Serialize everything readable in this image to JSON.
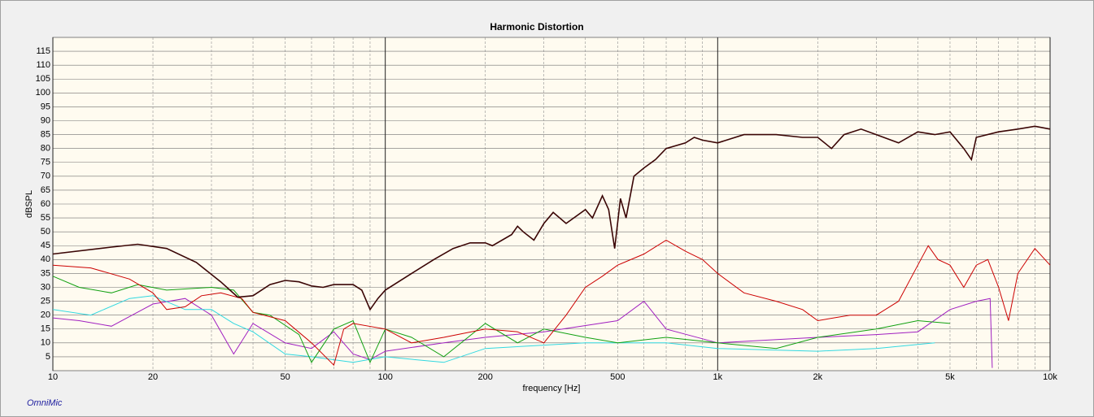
{
  "chart_data": {
    "type": "line",
    "title": "Harmonic Distortion",
    "x_label": "frequency [Hz]",
    "y_label": "dBSPL",
    "footer": "OmniMic",
    "log_x": true,
    "grid": true,
    "xlim": [
      10,
      10000
    ],
    "ylim": [
      0,
      120
    ],
    "xticks": [
      10,
      20,
      50,
      100,
      200,
      500,
      {
        "value": 1000,
        "label": "1k"
      },
      {
        "value": 2000,
        "label": "2k"
      },
      {
        "value": 5000,
        "label": "5k"
      },
      {
        "value": 10000,
        "label": "10k"
      }
    ],
    "xgrid_minor": [
      30,
      40,
      60,
      70,
      80,
      90,
      300,
      400,
      600,
      700,
      800,
      900,
      3000,
      4000,
      6000,
      7000,
      8000,
      9000
    ],
    "yticks": [
      5,
      10,
      15,
      20,
      25,
      30,
      35,
      40,
      45,
      50,
      55,
      60,
      65,
      70,
      75,
      80,
      85,
      90,
      95,
      100,
      105,
      110,
      115
    ],
    "series": [
      {
        "color": "#3a0505",
        "x": [
          10,
          15,
          18,
          22,
          27,
          32,
          36,
          40,
          45,
          50,
          55,
          60,
          65,
          70,
          80,
          85,
          90,
          95,
          100,
          120,
          140,
          160,
          180,
          200,
          210,
          240,
          250,
          260,
          280,
          300,
          320,
          350,
          400,
          420,
          450,
          470,
          490,
          510,
          530,
          560,
          600,
          650,
          700,
          800,
          850,
          900,
          1000,
          1200,
          1500,
          1800,
          2000,
          2200,
          2400,
          2700,
          3000,
          3500,
          4000,
          4500,
          5000,
          5500,
          5800,
          6000,
          7000,
          8000,
          9000,
          10000
        ],
        "values": [
          42,
          44.5,
          45.5,
          44,
          39,
          32,
          26.5,
          27,
          31,
          32.5,
          32,
          30.5,
          30,
          31,
          31,
          29,
          22,
          26,
          29,
          35,
          40,
          44,
          46,
          46,
          45,
          49,
          52,
          50,
          47,
          53,
          57,
          53,
          58,
          55,
          63,
          58,
          44,
          62,
          55,
          70,
          73,
          76,
          80,
          82,
          84,
          83,
          82,
          85,
          85,
          84,
          84,
          80,
          85,
          87,
          85,
          82,
          86,
          85,
          86,
          80,
          76,
          84,
          86,
          87,
          88,
          87
        ]
      },
      {
        "color": "#cc0000",
        "x": [
          10,
          13,
          17,
          20,
          22,
          25,
          28,
          32,
          37,
          40,
          50,
          60,
          70,
          75,
          80,
          100,
          120,
          150,
          200,
          250,
          300,
          350,
          400,
          450,
          500,
          600,
          700,
          800,
          900,
          1000,
          1200,
          1500,
          1800,
          2000,
          2500,
          3000,
          3500,
          4000,
          4300,
          4600,
          5000,
          5500,
          6000,
          6500,
          7000,
          7500,
          8000,
          9000,
          10000
        ],
        "values": [
          38,
          37,
          33,
          28,
          22,
          23,
          27,
          28,
          26,
          21,
          18,
          10,
          2,
          15,
          17,
          15,
          10,
          12,
          15,
          14,
          10,
          20,
          30,
          34,
          38,
          42,
          47,
          43,
          40,
          35,
          28,
          25,
          22,
          18,
          20,
          20,
          25,
          38,
          45,
          40,
          38,
          30,
          38,
          40,
          30,
          18,
          35,
          44,
          38
        ]
      },
      {
        "color": "#10a010",
        "x": [
          10,
          12,
          15,
          18,
          22,
          30,
          35,
          40,
          45,
          55,
          60,
          70,
          80,
          90,
          100,
          120,
          150,
          200,
          250,
          300,
          400,
          500,
          700,
          1000,
          1500,
          2000,
          3000,
          4000,
          5000
        ],
        "values": [
          34,
          30,
          28,
          31,
          29,
          30,
          29,
          21,
          20,
          13,
          3,
          15,
          18,
          3,
          15,
          12,
          5,
          17,
          10,
          15,
          12,
          10,
          12,
          10,
          8,
          12,
          15,
          18,
          17
        ]
      },
      {
        "color": "#30d8e0",
        "x": [
          10,
          13,
          17,
          20,
          25,
          30,
          35,
          40,
          50,
          60,
          80,
          100,
          150,
          200,
          400,
          700,
          1000,
          2000,
          3000,
          4500
        ],
        "values": [
          22,
          20,
          26,
          27,
          22,
          22,
          17,
          14,
          6,
          5,
          3,
          5,
          3,
          8,
          10,
          10,
          8,
          7,
          8,
          10
        ]
      },
      {
        "color": "#a020c0",
        "x": [
          10,
          12,
          15,
          20,
          25,
          30,
          35,
          40,
          50,
          60,
          70,
          80,
          90,
          100,
          150,
          200,
          300,
          500,
          600,
          700,
          1000,
          2000,
          3000,
          4000,
          5000,
          6000,
          6600,
          6700
        ],
        "values": [
          19,
          18,
          16,
          24,
          26,
          20,
          6,
          17,
          10,
          8,
          14,
          6,
          4,
          7,
          10,
          12,
          14,
          18,
          25,
          15,
          10,
          12,
          13,
          14,
          22,
          25,
          26,
          1
        ]
      }
    ]
  }
}
